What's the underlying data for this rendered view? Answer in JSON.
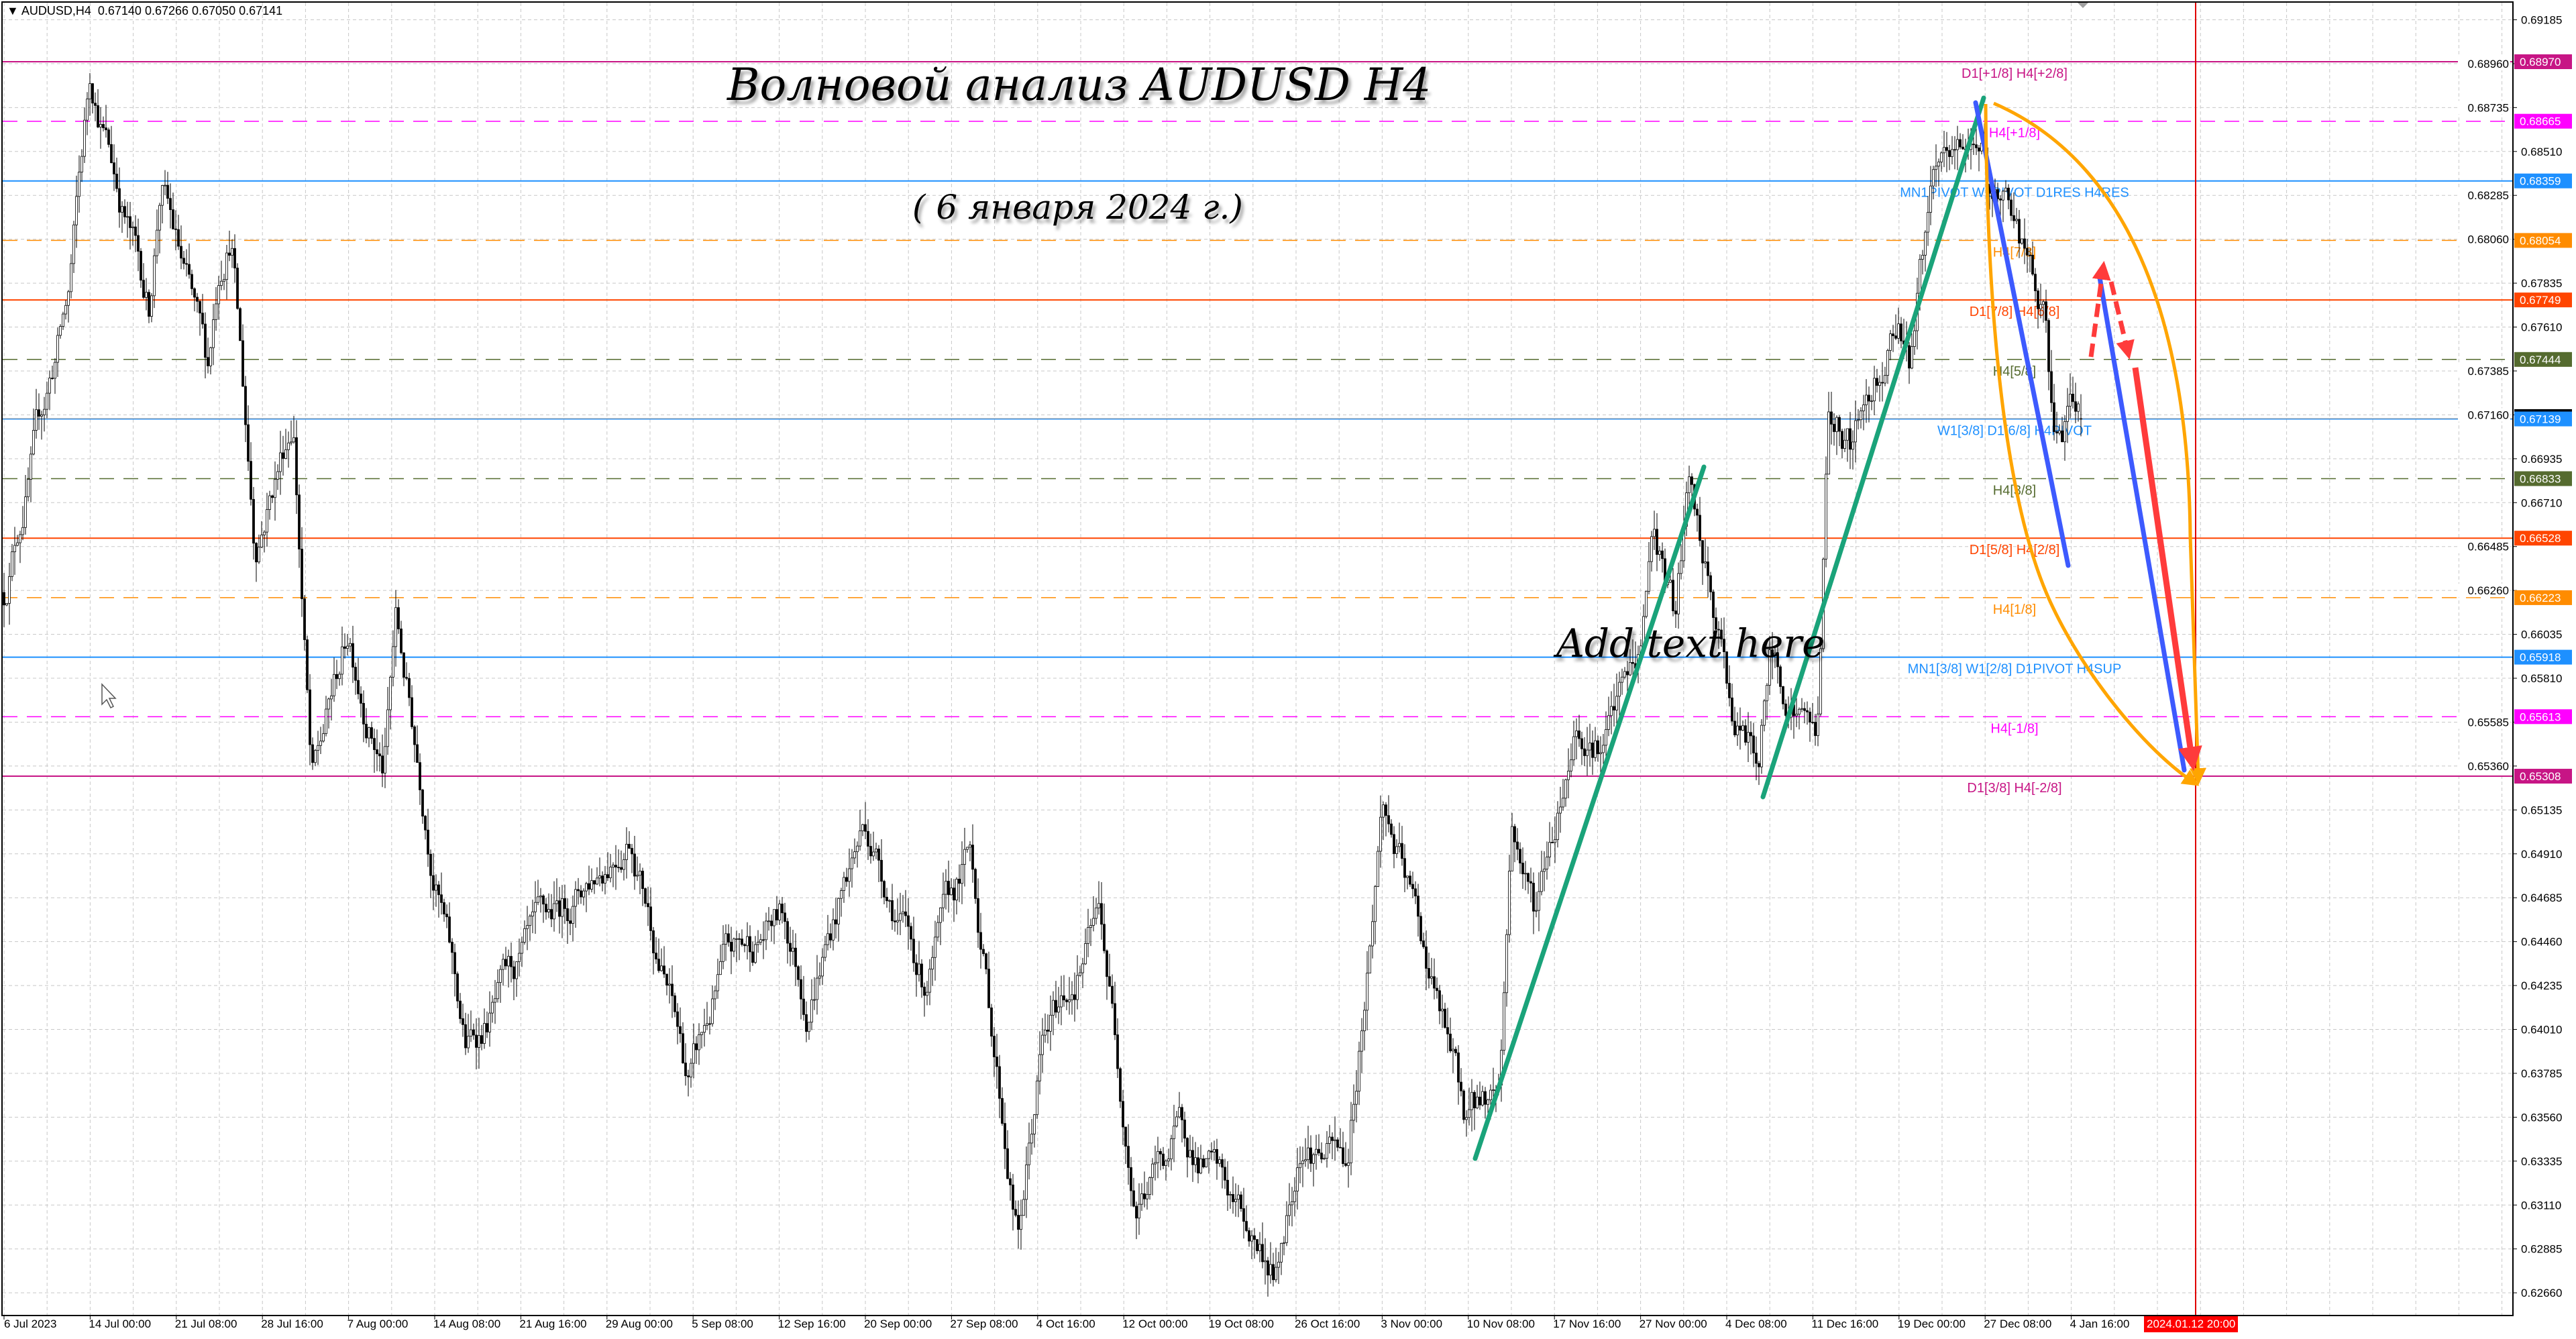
{
  "header": {
    "symbol": "AUDUSD,H4",
    "ohlc": "0.67140 0.67266 0.67050 0.67141"
  },
  "annotations": {
    "title": "Волновой анализ AUDUSD H4",
    "subtitle": "( 6 января 2024 г.)",
    "placeholder_text": "Add text here"
  },
  "colors": {
    "bull": "#ffffff",
    "bear": "#000000",
    "grid": "#c0c0c0",
    "green_wave": "#1aa37a",
    "blue_wave": "#3d5afe",
    "orange_arc": "#ffa500",
    "red_arrow": "#ff3b3b",
    "time_line": "#e00000"
  },
  "chart_data": {
    "type": "candlestick",
    "symbol": "AUDUSD",
    "timeframe": "H4",
    "ylim": [
      0.626,
      0.6921
    ],
    "grid": true,
    "y_ticks": [
      "0.69185",
      "0.68960",
      "0.68735",
      "0.68510",
      "0.68285",
      "0.68060",
      "0.67835",
      "0.67610",
      "0.67385",
      "0.67160",
      "0.66935",
      "0.66710",
      "0.66485",
      "0.66260",
      "0.66035",
      "0.65810",
      "0.65585",
      "0.65360",
      "0.65135",
      "0.64910",
      "0.64685",
      "0.64460",
      "0.64235",
      "0.64010",
      "0.63785",
      "0.63560",
      "0.63335",
      "0.63110",
      "0.62885",
      "0.62660"
    ],
    "x_ticks": [
      "6 Jul 2023",
      "14 Jul 00:00",
      "21 Jul 08:00",
      "28 Jul 16:00",
      "7 Aug 00:00",
      "14 Aug 08:00",
      "21 Aug 16:00",
      "29 Aug 00:00",
      "5 Sep 08:00",
      "12 Sep 16:00",
      "20 Sep 00:00",
      "27 Sep 08:00",
      "4 Oct 16:00",
      "12 Oct 00:00",
      "19 Oct 08:00",
      "26 Oct 16:00",
      "3 Nov 00:00",
      "10 Nov 08:00",
      "17 Nov 16:00",
      "27 Nov 00:00",
      "4 Dec 08:00",
      "11 Dec 16:00",
      "19 Dec 00:00",
      "27 Dec 08:00",
      "4 Jan 16:00"
    ],
    "cursor_time_label": "2024.01.12 20:00",
    "last_bar": {
      "open": 0.6714,
      "high": 0.67266,
      "low": 0.6705,
      "close": 0.67141
    },
    "price_path": [
      [
        "2023-07-06",
        0.6625
      ],
      [
        "2023-07-07",
        0.6653
      ],
      [
        "2023-07-12",
        0.6777
      ],
      [
        "2023-07-14",
        0.6891
      ],
      [
        "2023-07-17",
        0.6819
      ],
      [
        "2023-07-19",
        0.6771
      ],
      [
        "2023-07-20",
        0.6837
      ],
      [
        "2023-07-24",
        0.6735
      ],
      [
        "2023-07-25",
        0.6795
      ],
      [
        "2023-07-26",
        0.6815
      ],
      [
        "2023-07-28",
        0.6651
      ],
      [
        "2023-08-01",
        0.6718
      ],
      [
        "2023-08-03",
        0.6525
      ],
      [
        "2023-08-07",
        0.6605
      ],
      [
        "2023-08-10",
        0.6535
      ],
      [
        "2023-08-11",
        0.661
      ],
      [
        "2023-08-14",
        0.6499
      ],
      [
        "2023-08-17",
        0.639
      ],
      [
        "2023-08-21",
        0.6426
      ],
      [
        "2023-08-25",
        0.6459
      ],
      [
        "2023-08-31",
        0.6507
      ],
      [
        "2023-09-05",
        0.6373
      ],
      [
        "2023-09-08",
        0.6432
      ],
      [
        "2023-09-13",
        0.6459
      ],
      [
        "2023-09-15",
        0.6417
      ],
      [
        "2023-09-20",
        0.6508
      ],
      [
        "2023-09-25",
        0.6425
      ],
      [
        "2023-09-29",
        0.649
      ],
      [
        "2023-10-03",
        0.6293
      ],
      [
        "2023-10-05",
        0.639
      ],
      [
        "2023-10-10",
        0.6459
      ],
      [
        "2023-10-13",
        0.6314
      ],
      [
        "2023-10-17",
        0.6348
      ],
      [
        "2023-10-20",
        0.6322
      ],
      [
        "2023-10-25",
        0.6276
      ],
      [
        "2023-10-27",
        0.6348
      ],
      [
        "2023-10-31",
        0.6331
      ],
      [
        "2023-11-02",
        0.645
      ],
      [
        "2023-11-03",
        0.6518
      ],
      [
        "2023-11-07",
        0.6432
      ],
      [
        "2023-11-10",
        0.6356
      ],
      [
        "2023-11-13",
        0.6373
      ],
      [
        "2023-11-14",
        0.6508
      ],
      [
        "2023-11-16",
        0.6462
      ],
      [
        "2023-11-20",
        0.6562
      ],
      [
        "2023-11-23",
        0.655
      ],
      [
        "2023-11-27",
        0.6592
      ],
      [
        "2023-11-28",
        0.6659
      ],
      [
        "2023-11-30",
        0.6609
      ],
      [
        "2023-12-01",
        0.6676
      ],
      [
        "2023-12-05",
        0.6558
      ],
      [
        "2023-12-07",
        0.6537
      ],
      [
        "2023-12-08",
        0.6592
      ],
      [
        "2023-12-12",
        0.655
      ],
      [
        "2023-12-13",
        0.6718
      ],
      [
        "2023-12-15",
        0.6701
      ],
      [
        "2023-12-19",
        0.6771
      ],
      [
        "2023-12-20",
        0.675
      ],
      [
        "2023-12-22",
        0.6827
      ],
      [
        "2023-12-27",
        0.6861
      ],
      [
        "2023-12-28",
        0.6819
      ],
      [
        "2023-12-29",
        0.6836
      ],
      [
        "2024-01-02",
        0.6761
      ],
      [
        "2024-01-03",
        0.6701
      ],
      [
        "2024-01-05",
        0.67141
      ]
    ],
    "levels": [
      {
        "price": 0.6897,
        "label": "D1[+1/8] H4[+2/8]",
        "tag": "0.68970",
        "color": "#c71585",
        "style": "solid"
      },
      {
        "price": 0.68665,
        "label": "H4[+1/8]",
        "tag": "0.68665",
        "color": "#ff00ff",
        "style": "dashed"
      },
      {
        "price": 0.68359,
        "label": "MN1PIVOT W1PIVOT D1RES H4RES",
        "tag": "0.68359",
        "color": "#1e90ff",
        "style": "solid"
      },
      {
        "price": 0.68054,
        "label": "H4[7/8]",
        "tag": "0.68054",
        "color": "#ff8c00",
        "style": "dashed"
      },
      {
        "price": 0.67749,
        "label": "D1[7/8] H4[6/8]",
        "tag": "0.67749",
        "color": "#ff4500",
        "style": "solid"
      },
      {
        "price": 0.67444,
        "label": "H4[5/8]",
        "tag": "0.67444",
        "color": "#556b2f",
        "style": "dashed"
      },
      {
        "price": 0.67139,
        "label": "W1[3/8] D1[6/8] H4PIVOT",
        "tag": "0.67139",
        "color": "#1e90ff",
        "style": "solid"
      },
      {
        "price": 0.66833,
        "label": "H4[3/8]",
        "tag": "0.66833",
        "color": "#556b2f",
        "style": "dashed"
      },
      {
        "price": 0.66528,
        "label": "D1[5/8] H4[2/8]",
        "tag": "0.66528",
        "color": "#ff4500",
        "style": "solid"
      },
      {
        "price": 0.66223,
        "label": "H4[1/8]",
        "tag": "0.66223",
        "color": "#ff8c00",
        "style": "dashed"
      },
      {
        "price": 0.65918,
        "label": "MN1[3/8] W1[2/8] D1PIVOT H4SUP",
        "tag": "0.65918",
        "color": "#1e90ff",
        "style": "solid"
      },
      {
        "price": 0.65613,
        "label": "H4[-1/8]",
        "tag": "0.65613",
        "color": "#ff00ff",
        "style": "dashed"
      },
      {
        "price": 0.65308,
        "label": "D1[3/8] H4[-2/8]",
        "tag": "0.65308",
        "color": "#c71585",
        "style": "solid"
      }
    ]
  }
}
